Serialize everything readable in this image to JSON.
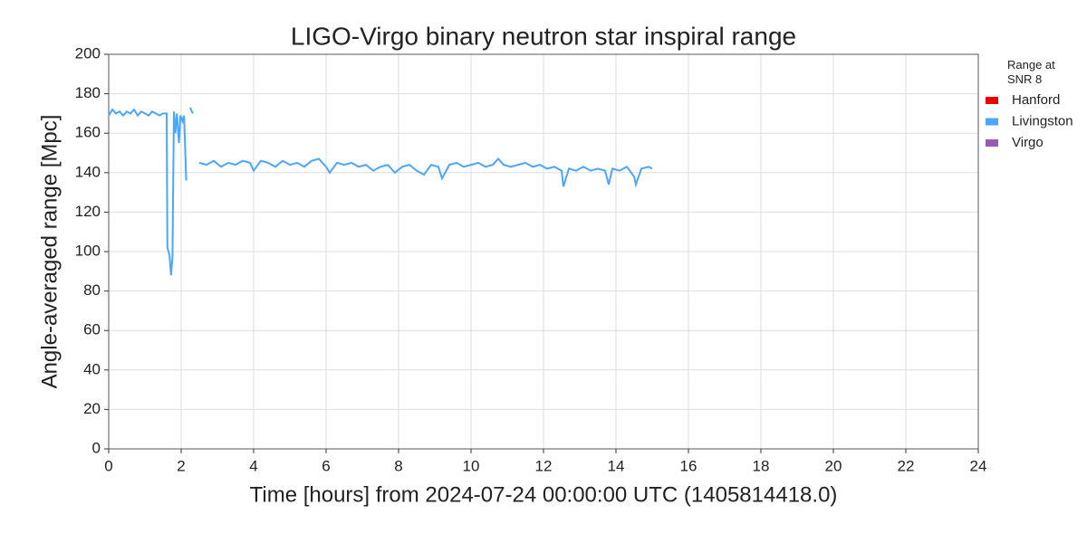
{
  "chart_data": {
    "type": "line",
    "title": "LIGO-Virgo binary neutron star inspiral range",
    "x_label": "Time [hours] from 2024-07-24 00:00:00 UTC (1405814418.0)",
    "y_label": "Angle-averaged range [Mpc]",
    "legend_title": "Range at SNR 8",
    "xlim": [
      0,
      24
    ],
    "ylim": [
      0,
      200
    ],
    "xticks": [
      0,
      2,
      4,
      6,
      8,
      10,
      12,
      14,
      16,
      18,
      20,
      22,
      24
    ],
    "yticks": [
      0,
      20,
      40,
      60,
      80,
      100,
      120,
      140,
      160,
      180,
      200
    ],
    "grid": true,
    "legend": "outside-right",
    "series": [
      {
        "name": "Hanford",
        "color": "#ee0000",
        "x": [],
        "values": []
      },
      {
        "name": "Livingston",
        "color": "#4ba6ff",
        "x": [
          0,
          0.1,
          0.2,
          0.3,
          0.4,
          0.5,
          0.6,
          0.7,
          0.8,
          0.9,
          1.0,
          1.1,
          1.2,
          1.3,
          1.4,
          1.5,
          1.6,
          1.62,
          1.68,
          1.72,
          1.76,
          1.8,
          1.84,
          1.88,
          1.94,
          1.98,
          2.04,
          2.08,
          2.14,
          2.2,
          2.25,
          2.32,
          2.4,
          2.5,
          2.7,
          2.9,
          3.1,
          3.3,
          3.5,
          3.7,
          3.9,
          4.0,
          4.2,
          4.4,
          4.6,
          4.8,
          5.0,
          5.2,
          5.4,
          5.6,
          5.8,
          6.0,
          6.1,
          6.3,
          6.5,
          6.7,
          6.9,
          7.1,
          7.3,
          7.5,
          7.7,
          7.9,
          8.1,
          8.3,
          8.5,
          8.7,
          8.9,
          9.1,
          9.2,
          9.4,
          9.6,
          9.8,
          10.0,
          10.2,
          10.4,
          10.6,
          10.75,
          10.9,
          11.1,
          11.3,
          11.5,
          11.7,
          11.9,
          12.1,
          12.3,
          12.5,
          12.55,
          12.7,
          12.9,
          13.1,
          13.3,
          13.5,
          13.7,
          13.8,
          13.9,
          14.1,
          14.3,
          14.5,
          14.55,
          14.7,
          14.9,
          15.0
        ],
        "values": [
          169,
          172,
          170,
          171,
          169,
          171,
          170,
          172,
          169,
          171,
          170,
          169,
          171,
          170,
          169,
          170,
          170,
          102,
          98,
          88,
          97,
          171,
          160,
          170,
          155,
          169,
          166,
          169,
          136,
          null,
          173,
          170,
          null,
          145,
          144,
          146,
          143,
          145,
          144,
          146,
          145,
          141,
          146,
          145,
          143,
          146,
          144,
          145,
          143,
          146,
          147,
          143,
          140,
          145,
          144,
          145,
          143,
          144,
          141,
          143,
          144,
          140,
          143,
          144,
          141,
          139,
          144,
          143,
          137,
          144,
          145,
          143,
          144,
          145,
          143,
          144,
          147,
          144,
          143,
          144,
          145,
          143,
          144,
          142,
          143,
          141,
          133,
          142,
          141,
          143,
          141,
          142,
          141,
          134,
          142,
          141,
          143,
          138,
          134,
          142,
          143,
          142
        ]
      },
      {
        "name": "Virgo",
        "color": "#9b59b6",
        "x": [],
        "values": []
      }
    ]
  }
}
